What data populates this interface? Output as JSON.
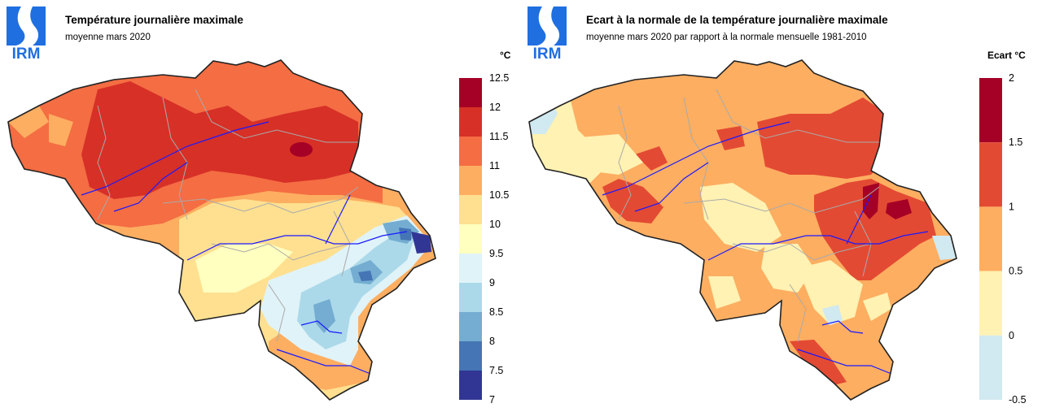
{
  "panels": [
    {
      "logo_text": "IRM",
      "title": "Température journalière maximale",
      "subtitle": "moyenne mars 2020",
      "legend": {
        "unit": "°C",
        "ticks": [
          "12.5",
          "12",
          "11.5",
          "11",
          "10.5",
          "10",
          "9.5",
          "9",
          "8.5",
          "8",
          "7.5",
          "7"
        ],
        "colors": [
          "#a50026",
          "#d73027",
          "#f46d43",
          "#fdae61",
          "#fee090",
          "#ffffbf",
          "#e0f3f8",
          "#abd9e9",
          "#74add1",
          "#4575b4",
          "#313695"
        ]
      }
    },
    {
      "logo_text": "IRM",
      "title": "Ecart à la normale de la température journalière maximale",
      "subtitle": "moyenne mars 2020 par rapport à la normale mensuelle 1981-2010",
      "legend": {
        "unit": "Ecart °C",
        "ticks": [
          "2",
          "1.5",
          "1",
          "0.5",
          "0",
          "-0.5"
        ],
        "colors": [
          "#a50026",
          "#e34a33",
          "#fdae61",
          "#fff2b3",
          "#d1e9f0"
        ]
      }
    }
  ]
}
